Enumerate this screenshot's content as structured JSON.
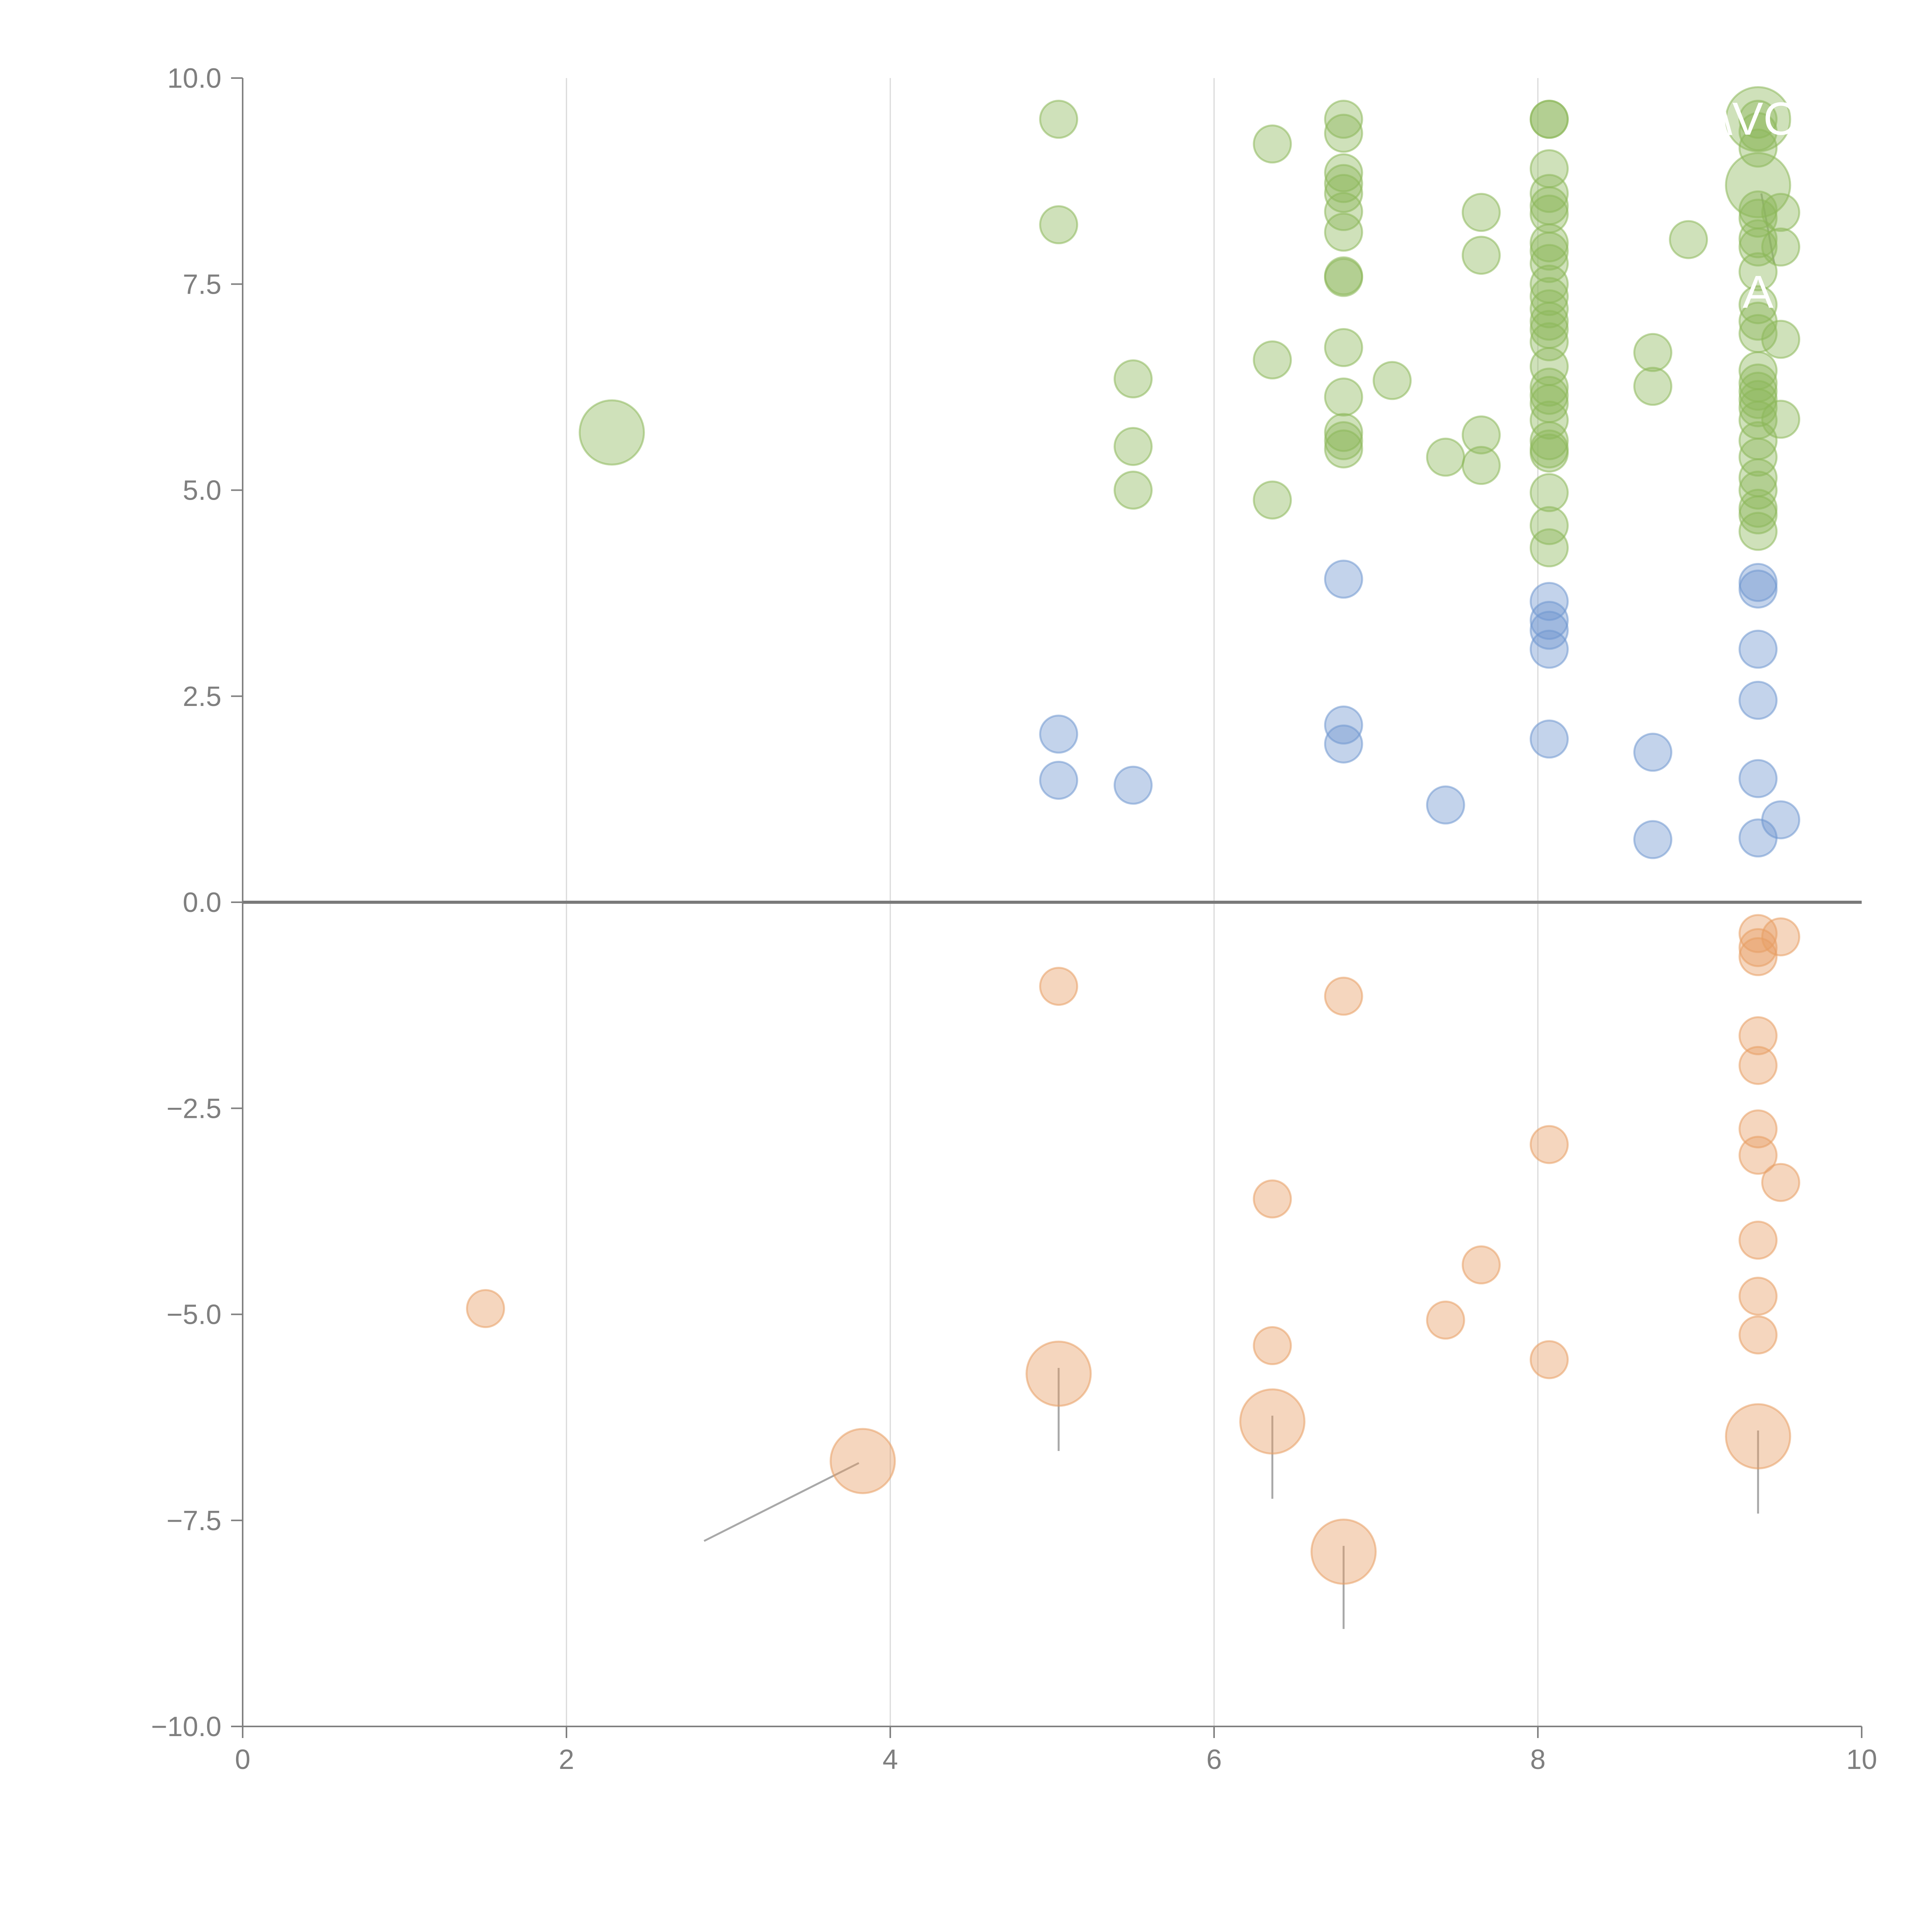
{
  "chart_data": {
    "type": "scatter",
    "title": "",
    "xlabel": "",
    "ylabel": "",
    "xlim": [
      0,
      10
    ],
    "ylim": [
      -10,
      10
    ],
    "grid": "vertical-only",
    "x_ticks": [
      "0",
      "2",
      "4",
      "6",
      "8",
      "10"
    ],
    "y_ticks": [
      "10.0",
      "7.5",
      "5.0",
      "2.5",
      "0.0",
      "−2.5",
      "−5.0",
      "−7.5",
      "−10.0"
    ],
    "colors": {
      "green": "#8db85a",
      "blue": "#6f97cf",
      "orange": "#e89e63"
    },
    "series": [
      {
        "name": "green",
        "points": [
          [
            5.04,
            9.5,
            1
          ],
          [
            5.04,
            8.22,
            1
          ],
          [
            5.5,
            6.35,
            1
          ],
          [
            5.5,
            5.53,
            1
          ],
          [
            5.5,
            5.0,
            1
          ],
          [
            6.36,
            9.2,
            1
          ],
          [
            6.36,
            6.58,
            1
          ],
          [
            6.36,
            4.88,
            1
          ],
          [
            6.8,
            9.5,
            1
          ],
          [
            6.8,
            9.33,
            1
          ],
          [
            6.8,
            8.85,
            1
          ],
          [
            6.8,
            8.72,
            1
          ],
          [
            6.8,
            8.6,
            1
          ],
          [
            6.8,
            8.38,
            1
          ],
          [
            6.8,
            8.13,
            1
          ],
          [
            6.8,
            7.6,
            1
          ],
          [
            6.8,
            7.58,
            1
          ],
          [
            6.8,
            6.73,
            1
          ],
          [
            6.8,
            6.13,
            1
          ],
          [
            6.8,
            5.7,
            1
          ],
          [
            6.8,
            5.6,
            1
          ],
          [
            6.8,
            5.5,
            1
          ],
          [
            7.1,
            6.33,
            1
          ],
          [
            7.43,
            5.4,
            1
          ],
          [
            7.65,
            8.37,
            1
          ],
          [
            7.65,
            7.85,
            1
          ],
          [
            7.65,
            5.67,
            1
          ],
          [
            7.65,
            5.3,
            1
          ],
          [
            8.07,
            9.5,
            1
          ],
          [
            8.07,
            9.5,
            1
          ],
          [
            8.07,
            8.9,
            1
          ],
          [
            8.07,
            8.6,
            1
          ],
          [
            8.07,
            8.45,
            1
          ],
          [
            8.07,
            8.35,
            1
          ],
          [
            8.07,
            8.0,
            1
          ],
          [
            8.07,
            7.9,
            1
          ],
          [
            8.07,
            7.75,
            1
          ],
          [
            8.07,
            7.5,
            1
          ],
          [
            8.07,
            7.35,
            1
          ],
          [
            8.07,
            7.2,
            1
          ],
          [
            8.07,
            7.05,
            1
          ],
          [
            8.07,
            6.95,
            1
          ],
          [
            8.07,
            6.8,
            1
          ],
          [
            8.07,
            6.5,
            1
          ],
          [
            8.07,
            6.25,
            1
          ],
          [
            8.07,
            6.15,
            1
          ],
          [
            8.07,
            6.05,
            1
          ],
          [
            8.07,
            5.85,
            1
          ],
          [
            8.07,
            5.6,
            1
          ],
          [
            8.07,
            5.5,
            1
          ],
          [
            8.07,
            5.45,
            1
          ],
          [
            8.07,
            4.97,
            1
          ],
          [
            8.07,
            4.57,
            1
          ],
          [
            8.07,
            4.3,
            1
          ],
          [
            8.71,
            6.67,
            1
          ],
          [
            8.71,
            6.26,
            1
          ],
          [
            8.93,
            8.04,
            1
          ],
          [
            9.36,
            9.5,
            1
          ],
          [
            9.36,
            9.35,
            1
          ],
          [
            9.36,
            9.15,
            1
          ],
          [
            9.36,
            8.4,
            1
          ],
          [
            9.36,
            8.3,
            1
          ],
          [
            9.36,
            8.05,
            1
          ],
          [
            9.36,
            7.95,
            1
          ],
          [
            9.36,
            7.65,
            1
          ],
          [
            9.36,
            7.25,
            1
          ],
          [
            9.36,
            7.05,
            1
          ],
          [
            9.36,
            6.9,
            1
          ],
          [
            9.36,
            6.45,
            1
          ],
          [
            9.36,
            6.3,
            1
          ],
          [
            9.36,
            6.2,
            1
          ],
          [
            9.36,
            6.1,
            1
          ],
          [
            9.36,
            6.0,
            1
          ],
          [
            9.36,
            5.85,
            1
          ],
          [
            9.36,
            5.6,
            1
          ],
          [
            9.36,
            5.4,
            1
          ],
          [
            9.36,
            5.15,
            1
          ],
          [
            9.36,
            5.0,
            1
          ],
          [
            9.36,
            4.78,
            1
          ],
          [
            9.36,
            4.7,
            1
          ],
          [
            9.36,
            4.5,
            1
          ],
          [
            9.5,
            8.37,
            1
          ],
          [
            9.5,
            7.95,
            1
          ],
          [
            9.5,
            6.83,
            1
          ],
          [
            9.5,
            5.86,
            1
          ],
          [
            2.28,
            5.7,
            3
          ],
          [
            9.36,
            8.7,
            3
          ],
          [
            9.36,
            9.5,
            3
          ]
        ]
      },
      {
        "name": "blue",
        "points": [
          [
            5.04,
            2.04,
            1
          ],
          [
            5.04,
            1.48,
            1
          ],
          [
            5.5,
            1.42,
            1
          ],
          [
            6.8,
            3.92,
            1
          ],
          [
            6.8,
            2.15,
            1
          ],
          [
            6.8,
            1.92,
            1
          ],
          [
            7.43,
            1.18,
            1
          ],
          [
            8.07,
            3.65,
            1
          ],
          [
            8.07,
            3.42,
            1
          ],
          [
            8.07,
            3.3,
            1
          ],
          [
            8.07,
            3.07,
            1
          ],
          [
            8.07,
            1.98,
            1
          ],
          [
            8.71,
            1.82,
            1
          ],
          [
            8.71,
            0.76,
            1
          ],
          [
            9.36,
            3.88,
            1
          ],
          [
            9.36,
            3.8,
            1
          ],
          [
            9.36,
            3.07,
            1
          ],
          [
            9.36,
            2.45,
            1
          ],
          [
            9.36,
            1.5,
            1
          ],
          [
            9.36,
            0.78,
            1
          ],
          [
            9.5,
            1.0,
            1
          ]
        ]
      },
      {
        "name": "orange",
        "points": [
          [
            1.5,
            -4.93,
            1
          ],
          [
            5.04,
            -1.02,
            1
          ],
          [
            6.8,
            -1.14,
            1
          ],
          [
            6.36,
            -3.6,
            1
          ],
          [
            6.36,
            -5.38,
            1
          ],
          [
            7.43,
            -5.07,
            1
          ],
          [
            7.65,
            -4.4,
            1
          ],
          [
            8.07,
            -2.94,
            1
          ],
          [
            8.07,
            -5.55,
            1
          ],
          [
            9.36,
            -0.38,
            1
          ],
          [
            9.36,
            -0.55,
            1
          ],
          [
            9.36,
            -0.66,
            1
          ],
          [
            9.36,
            -1.62,
            1
          ],
          [
            9.36,
            -1.98,
            1
          ],
          [
            9.36,
            -2.75,
            1
          ],
          [
            9.36,
            -3.07,
            1
          ],
          [
            9.36,
            -4.1,
            1
          ],
          [
            9.36,
            -4.78,
            1
          ],
          [
            9.36,
            -5.25,
            1
          ],
          [
            9.5,
            -0.42,
            1
          ],
          [
            9.5,
            -3.4,
            1
          ],
          [
            3.83,
            -6.78,
            3
          ],
          [
            5.04,
            -5.72,
            3
          ],
          [
            6.36,
            -6.3,
            3
          ],
          [
            6.8,
            -7.88,
            3
          ],
          [
            9.36,
            -6.48,
            3
          ]
        ]
      }
    ],
    "annotations": [
      {
        "text": "\\VC",
        "x": 9.36,
        "y": 9.5
      },
      {
        "text": "A",
        "x": 9.36,
        "y": 7.4
      }
    ]
  }
}
